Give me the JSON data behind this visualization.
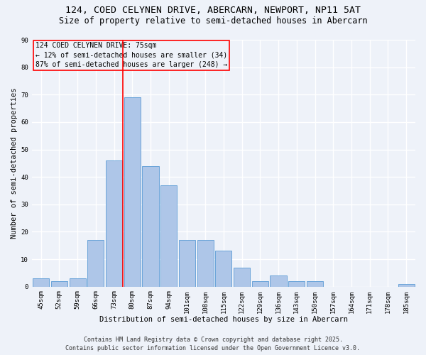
{
  "title_line1": "124, COED CELYNEN DRIVE, ABERCARN, NEWPORT, NP11 5AT",
  "title_line2": "Size of property relative to semi-detached houses in Abercarn",
  "xlabel": "Distribution of semi-detached houses by size in Abercarn",
  "ylabel": "Number of semi-detached properties",
  "categories": [
    "45sqm",
    "52sqm",
    "59sqm",
    "66sqm",
    "73sqm",
    "80sqm",
    "87sqm",
    "94sqm",
    "101sqm",
    "108sqm",
    "115sqm",
    "122sqm",
    "129sqm",
    "136sqm",
    "143sqm",
    "150sqm",
    "157sqm",
    "164sqm",
    "171sqm",
    "178sqm",
    "185sqm"
  ],
  "values": [
    3,
    2,
    3,
    17,
    46,
    69,
    44,
    37,
    17,
    17,
    13,
    7,
    2,
    4,
    2,
    2,
    0,
    0,
    0,
    0,
    1
  ],
  "bar_color": "#aec6e8",
  "bar_edge_color": "#5b9bd5",
  "vline_x_idx": 4,
  "vline_color": "red",
  "annotation_title": "124 COED CELYNEN DRIVE: 75sqm",
  "annotation_line1": "← 12% of semi-detached houses are smaller (34)",
  "annotation_line2": "87% of semi-detached houses are larger (248) →",
  "annotation_box_color": "red",
  "ylim": [
    0,
    90
  ],
  "yticks": [
    0,
    10,
    20,
    30,
    40,
    50,
    60,
    70,
    80,
    90
  ],
  "footnote1": "Contains HM Land Registry data © Crown copyright and database right 2025.",
  "footnote2": "Contains public sector information licensed under the Open Government Licence v3.0.",
  "bg_color": "#eef2f9",
  "grid_color": "#ffffff",
  "title_fontsize": 9.5,
  "subtitle_fontsize": 8.5,
  "axis_label_fontsize": 7.5,
  "tick_fontsize": 6.5,
  "annotation_fontsize": 7,
  "footnote_fontsize": 6
}
